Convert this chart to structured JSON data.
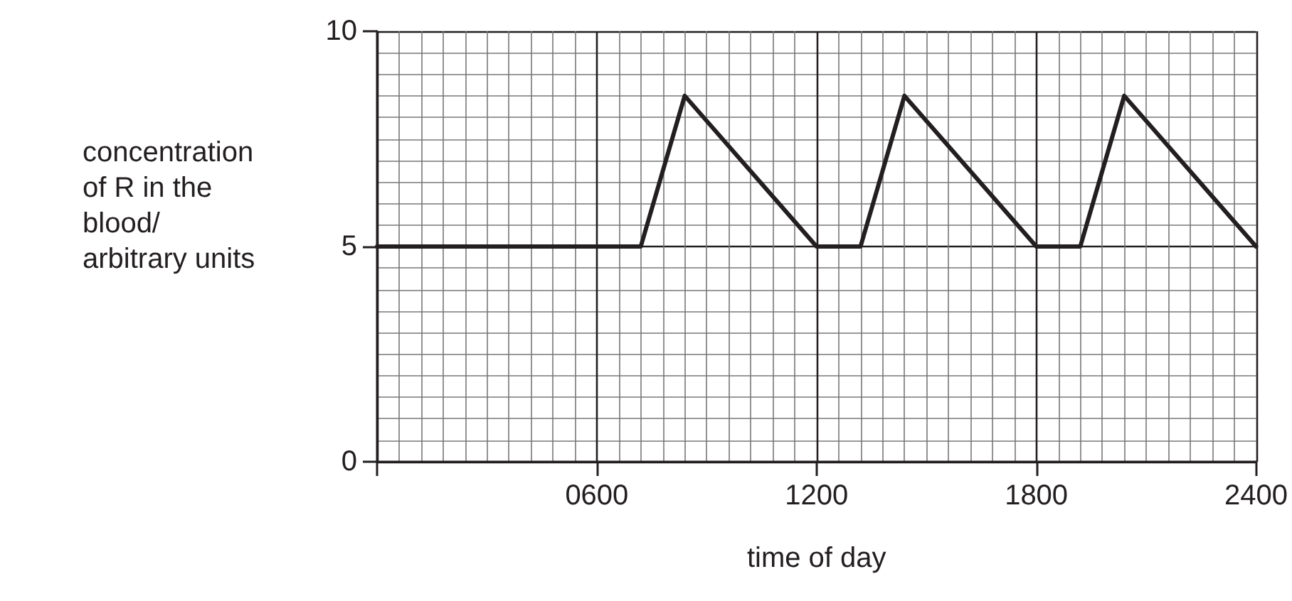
{
  "chart_data": {
    "type": "line",
    "xlabel": "time of day",
    "ylabel": "concentration of R in the blood/ arbitrary units",
    "x": [
      0,
      720,
      840,
      1200,
      1320,
      1440,
      1800,
      1920,
      2040,
      2400
    ],
    "series": [
      {
        "color": "#231f20",
        "values": [
          5,
          5,
          8.5,
          5,
          5,
          8.5,
          5,
          5,
          8.5,
          5
        ]
      }
    ],
    "xlim": [
      0,
      2400
    ],
    "xticks": [
      {
        "value": 0,
        "label": null
      },
      {
        "value": 600,
        "label": "0600"
      },
      1200,
      1800,
      2400
    ],
    "ylim": [
      0,
      10
    ],
    "yticks": [
      0,
      5,
      10
    ],
    "grid": true,
    "marker": "none",
    "line_style": "solid"
  }
}
